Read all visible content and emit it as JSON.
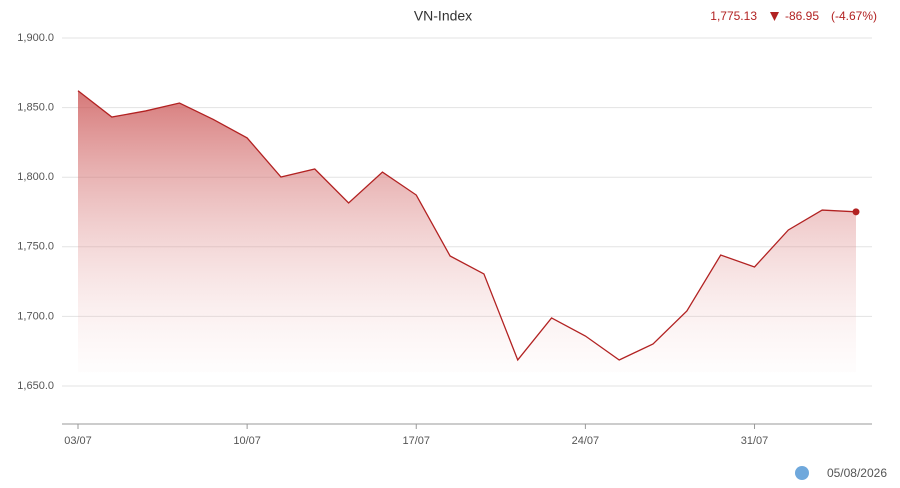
{
  "chart_data": {
    "type": "area",
    "title": "VN-Index",
    "last_value": "1,775.13",
    "change": "-86.95",
    "change_percent": "(-4.67%)",
    "date": "05/08/2026",
    "color": "#b22222",
    "categories": [
      "03/07",
      null,
      null,
      null,
      null,
      "10/07",
      null,
      null,
      null,
      null,
      "17/07",
      null,
      null,
      null,
      null,
      "24/07",
      null,
      null,
      null,
      null,
      "31/07",
      null,
      null,
      null
    ],
    "values": [
      1862.08,
      1843.2,
      1847.6,
      1853.3,
      1841.5,
      1828.2,
      1800.1,
      1805.9,
      1781.5,
      1803.7,
      1787.2,
      1743.4,
      1730.5,
      1668.7,
      1698.9,
      1685.9,
      1668.7,
      1680.2,
      1703.9,
      1744.1,
      1735.5,
      1762.1,
      1776.4,
      1775.13
    ],
    "ylim": [
      1622.7,
      1900
    ],
    "yticks": [
      {
        "value": 1650,
        "label": "1,650.0"
      },
      {
        "value": 1700,
        "label": "1,700.0"
      },
      {
        "value": 1750,
        "label": "1,750.0"
      },
      {
        "value": 1800,
        "label": "1,800.0"
      },
      {
        "value": 1850,
        "label": "1,850.0"
      },
      {
        "value": 1900,
        "label": "1,900.0"
      }
    ],
    "grid": true
  }
}
